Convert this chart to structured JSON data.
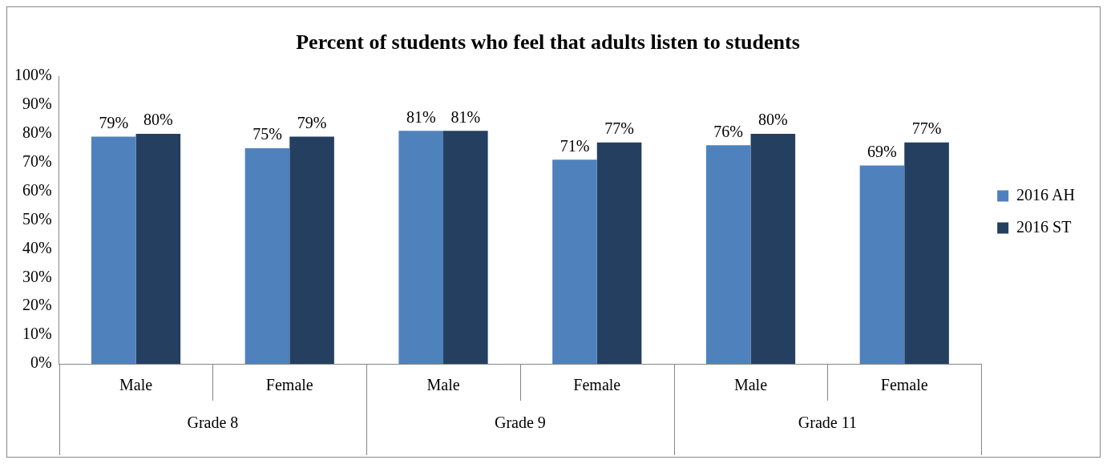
{
  "chart_data": {
    "type": "bar",
    "title": "Percent of students who feel that adults listen to students",
    "categories": [
      "Male",
      "Female",
      "Male",
      "Female",
      "Male",
      "Female"
    ],
    "series": [
      {
        "name": "2016 AH",
        "color": "#4f81bd",
        "values": [
          79,
          75,
          81,
          71,
          76,
          69
        ]
      },
      {
        "name": "2016 ST",
        "color": "#243f60",
        "values": [
          80,
          79,
          81,
          77,
          80,
          77
        ]
      }
    ],
    "value_labels": [
      [
        "79%",
        "75%",
        "81%",
        "71%",
        "76%",
        "69%"
      ],
      [
        "80%",
        "79%",
        "81%",
        "77%",
        "80%",
        "77%"
      ]
    ],
    "annotations": [
      "Grade 8",
      "Grade 9",
      "Grade 11"
    ],
    "ylim": [
      0,
      100
    ],
    "yticks": [
      {
        "value": 0,
        "label": "0%"
      },
      {
        "value": 10,
        "label": "10%"
      },
      {
        "value": 20,
        "label": "20%"
      },
      {
        "value": 30,
        "label": "30%"
      },
      {
        "value": 40,
        "label": "40%"
      },
      {
        "value": 50,
        "label": "50%"
      },
      {
        "value": 60,
        "label": "60%"
      },
      {
        "value": 70,
        "label": "70%"
      },
      {
        "value": 80,
        "label": "80%"
      },
      {
        "value": 90,
        "label": "90%"
      },
      {
        "value": 100,
        "label": "100%"
      }
    ],
    "grid": false,
    "legend": "right"
  }
}
